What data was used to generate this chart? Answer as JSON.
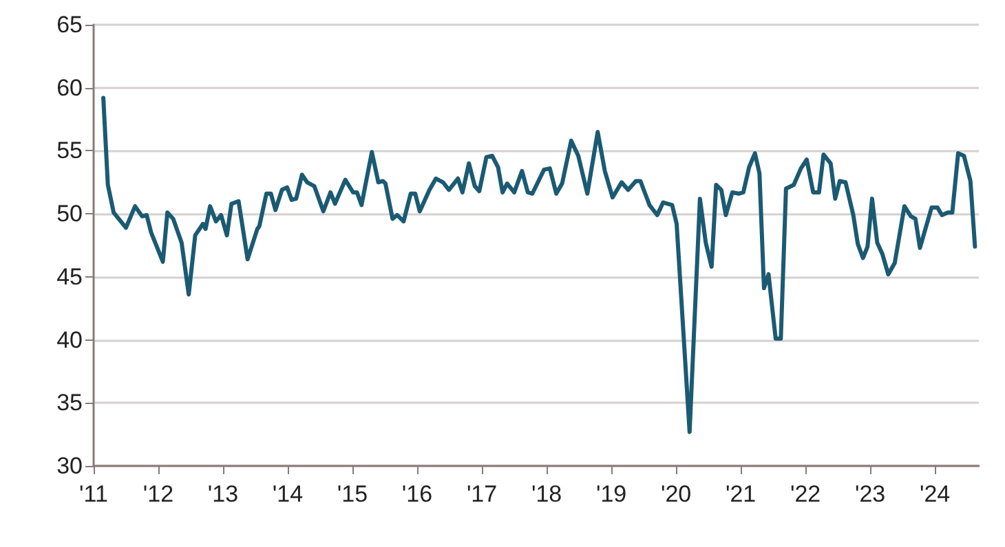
{
  "chart_data": {
    "type": "line",
    "xlim": [
      2011,
      2024.68
    ],
    "xticks": [
      {
        "value": 2011,
        "label": "'11"
      },
      {
        "value": 2012,
        "label": "'12"
      },
      {
        "value": 2013,
        "label": "'13"
      },
      {
        "value": 2014,
        "label": "'14"
      },
      {
        "value": 2015,
        "label": "'15"
      },
      {
        "value": 2016,
        "label": "'16"
      },
      {
        "value": 2017,
        "label": "'17"
      },
      {
        "value": 2018,
        "label": "'18"
      },
      {
        "value": 2019,
        "label": "'19"
      },
      {
        "value": 2020,
        "label": "'20"
      },
      {
        "value": 2021,
        "label": "'21"
      },
      {
        "value": 2022,
        "label": "'22"
      },
      {
        "value": 2023,
        "label": "'23"
      },
      {
        "value": 2024,
        "label": "'24"
      }
    ],
    "ylim": [
      30,
      65
    ],
    "yticks": [
      30,
      35,
      40,
      45,
      50,
      55,
      60,
      65
    ],
    "grid": "y",
    "marker": "none",
    "line_style": "solid",
    "series": [
      {
        "color": "#1b5a73",
        "x": [
          2011.15,
          2011.22,
          2011.31,
          2011.5,
          2011.64,
          2011.75,
          2011.82,
          2011.89,
          2012.07,
          2012.14,
          2012.23,
          2012.36,
          2012.47,
          2012.57,
          2012.69,
          2012.73,
          2012.8,
          2012.89,
          2012.97,
          2013.06,
          2013.13,
          2013.24,
          2013.38,
          2013.53,
          2013.56,
          2013.67,
          2013.74,
          2013.81,
          2013.91,
          2013.99,
          2014.06,
          2014.13,
          2014.22,
          2014.3,
          2014.41,
          2014.55,
          2014.66,
          2014.73,
          2014.89,
          2015.01,
          2015.07,
          2015.14,
          2015.3,
          2015.4,
          2015.47,
          2015.51,
          2015.62,
          2015.69,
          2015.79,
          2015.9,
          2015.97,
          2016.04,
          2016.19,
          2016.29,
          2016.4,
          2016.49,
          2016.63,
          2016.7,
          2016.8,
          2016.89,
          2016.96,
          2017.07,
          2017.16,
          2017.25,
          2017.32,
          2017.39,
          2017.5,
          2017.62,
          2017.71,
          2017.78,
          2017.96,
          2018.05,
          2018.15,
          2018.24,
          2018.38,
          2018.49,
          2018.63,
          2018.79,
          2018.9,
          2019.02,
          2019.16,
          2019.26,
          2019.38,
          2019.45,
          2019.59,
          2019.71,
          2019.8,
          2019.94,
          2020.01,
          2020.21,
          2020.37,
          2020.46,
          2020.55,
          2020.62,
          2020.7,
          2020.77,
          2020.87,
          2020.97,
          2021.04,
          2021.13,
          2021.22,
          2021.29,
          2021.36,
          2021.43,
          2021.54,
          2021.62,
          2021.7,
          2021.82,
          2021.93,
          2022.02,
          2022.12,
          2022.21,
          2022.28,
          2022.39,
          2022.46,
          2022.53,
          2022.62,
          2022.74,
          2022.81,
          2022.89,
          2022.96,
          2023.03,
          2023.11,
          2023.19,
          2023.28,
          2023.38,
          2023.53,
          2023.63,
          2023.7,
          2023.77,
          2023.95,
          2024.04,
          2024.11,
          2024.2,
          2024.27,
          2024.36,
          2024.45,
          2024.55,
          2024.62
        ],
        "values": [
          59.2,
          52.3,
          50.1,
          48.9,
          50.6,
          49.8,
          49.9,
          48.5,
          46.2,
          50.1,
          49.6,
          47.7,
          43.6,
          48.3,
          49.2,
          48.8,
          50.6,
          49.4,
          49.9,
          48.3,
          50.8,
          51.0,
          46.4,
          48.8,
          49.0,
          51.6,
          51.6,
          50.3,
          51.9,
          52.1,
          51.1,
          51.2,
          53.1,
          52.5,
          52.2,
          50.2,
          51.7,
          50.8,
          52.7,
          51.7,
          51.7,
          50.7,
          54.9,
          52.5,
          52.6,
          52.4,
          49.6,
          49.9,
          49.4,
          51.6,
          51.6,
          50.2,
          51.9,
          52.8,
          52.5,
          51.9,
          52.8,
          51.7,
          54.0,
          52.2,
          51.8,
          54.5,
          54.6,
          53.7,
          51.7,
          52.4,
          51.7,
          53.4,
          51.7,
          51.6,
          53.5,
          53.6,
          51.6,
          52.4,
          55.8,
          54.6,
          51.6,
          56.5,
          53.4,
          51.3,
          52.5,
          51.9,
          52.6,
          52.6,
          50.7,
          49.9,
          50.9,
          50.7,
          49.2,
          32.7,
          51.2,
          47.7,
          45.8,
          52.3,
          51.9,
          49.9,
          51.7,
          51.6,
          51.7,
          53.7,
          54.8,
          53.2,
          44.1,
          45.2,
          40.1,
          40.1,
          52.0,
          52.3,
          53.6,
          54.3,
          51.7,
          51.7,
          54.7,
          54.0,
          51.2,
          52.6,
          52.5,
          49.9,
          47.6,
          46.5,
          47.4,
          51.2,
          47.7,
          46.8,
          45.2,
          46.1,
          50.6,
          49.8,
          49.6,
          47.3,
          50.5,
          50.5,
          49.9,
          50.1,
          50.1,
          54.8,
          54.6,
          52.6,
          47.4
        ]
      }
    ]
  }
}
